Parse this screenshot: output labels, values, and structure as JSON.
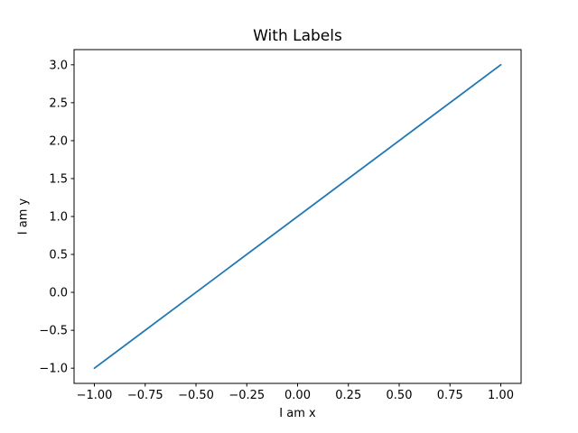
{
  "figure": {
    "background": "#ffffff",
    "text_color": "#000000"
  },
  "chart_data": {
    "type": "line",
    "title": "With Labels",
    "xlabel": "I am x",
    "ylabel": "I am y",
    "x": [
      -1,
      1
    ],
    "series": [
      {
        "name": "series-1",
        "color": "#1f77b4",
        "values": [
          -1,
          3
        ]
      }
    ],
    "xlim": [
      -1.1,
      1.1
    ],
    "ylim": [
      -1.2,
      3.2
    ],
    "grid": false,
    "legend": false,
    "spine_color": "#000000",
    "tick_color": "#000000",
    "xticks": {
      "values": [
        -1,
        -0.75,
        -0.5,
        -0.25,
        0,
        0.25,
        0.5,
        0.75,
        1
      ],
      "labels": [
        "−1.00",
        "−0.75",
        "−0.50",
        "−0.25",
        "0.00",
        "0.25",
        "0.50",
        "0.75",
        "1.00"
      ]
    },
    "yticks": {
      "values": [
        -1,
        -0.5,
        0,
        0.5,
        1,
        1.5,
        2,
        2.5,
        3
      ],
      "labels": [
        "−1.0",
        "−0.5",
        "0.0",
        "0.5",
        "1.0",
        "1.5",
        "2.0",
        "2.5",
        "3.0"
      ]
    }
  }
}
